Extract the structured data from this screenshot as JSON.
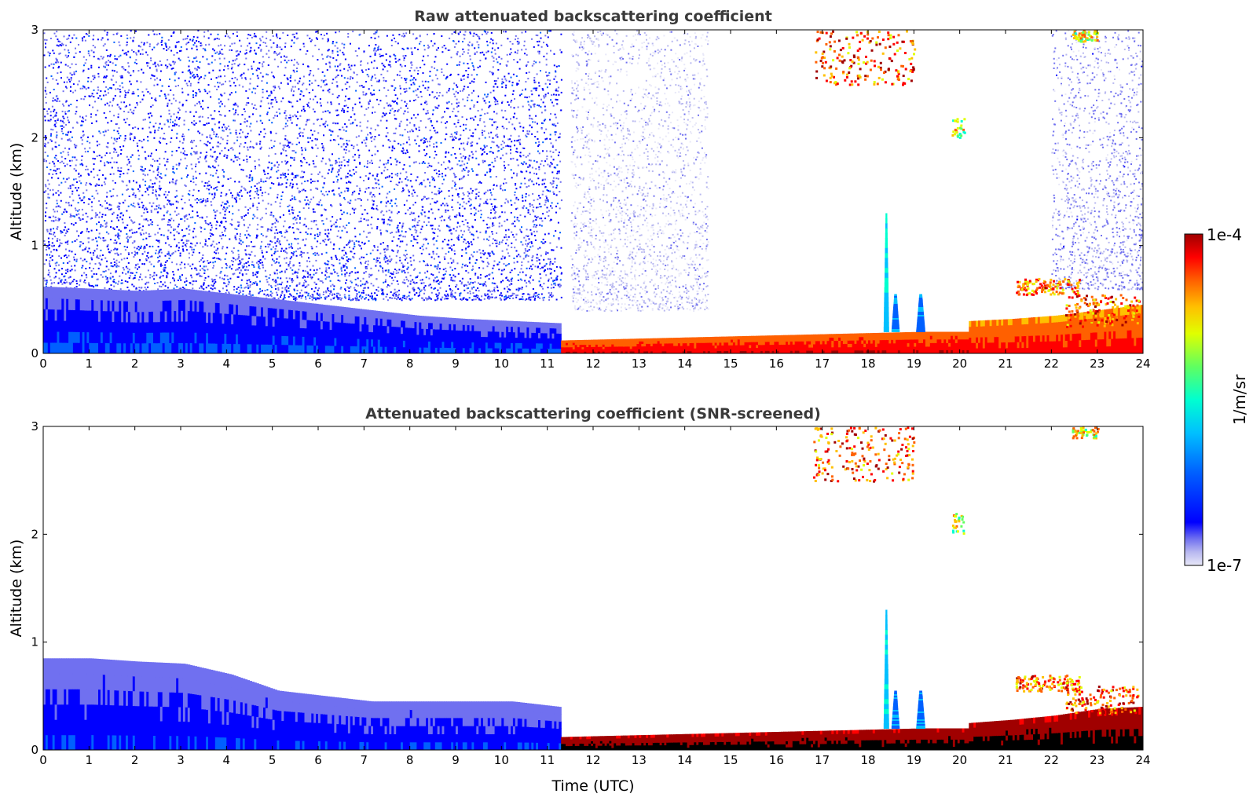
{
  "chart_data": [
    {
      "type": "heatmap",
      "title": "Raw attenuated backscattering coefficient",
      "xlabel": "",
      "ylabel": "Altitude (km)",
      "xlim": [
        0,
        24
      ],
      "ylim": [
        0,
        3
      ],
      "x_ticks": [
        "0",
        "1",
        "2",
        "3",
        "4",
        "5",
        "6",
        "7",
        "8",
        "9",
        "10",
        "11",
        "12",
        "13",
        "14",
        "15",
        "16",
        "17",
        "18",
        "19",
        "20",
        "21",
        "22",
        "23",
        "24"
      ],
      "y_ticks": [
        "0",
        "1",
        "2",
        "3"
      ],
      "features": [
        {
          "kind": "noise",
          "x": [
            0,
            11.3
          ],
          "y": [
            0.5,
            3.0
          ],
          "level": 0.22
        },
        {
          "kind": "noise",
          "x": [
            11.5,
            14.5
          ],
          "y": [
            0.4,
            3.0
          ],
          "level": 0.06
        },
        {
          "kind": "noise",
          "x": [
            22.0,
            24.0
          ],
          "y": [
            0.6,
            3.0
          ],
          "level": 0.12
        },
        {
          "kind": "layer",
          "x": [
            0,
            11.3
          ],
          "y_top": [
            0.62,
            0.6,
            0.58,
            0.6,
            0.55,
            0.5,
            0.45,
            0.4,
            0.35,
            0.32,
            0.3,
            0.28
          ],
          "y_bottom": 0.0,
          "level": 0.3
        },
        {
          "kind": "layer",
          "x": [
            11.3,
            20.2
          ],
          "y_top": [
            0.12,
            0.13,
            0.14,
            0.15,
            0.16,
            0.17,
            0.18,
            0.19,
            0.2,
            0.2
          ],
          "y_bottom": 0.0,
          "level": 0.95
        },
        {
          "kind": "layer",
          "x": [
            20.2,
            24
          ],
          "y_top": [
            0.3,
            0.32,
            0.35,
            0.4,
            0.45
          ],
          "y_bottom": 0.0,
          "level": 0.92
        },
        {
          "kind": "plume",
          "x_center": 18.4,
          "width": 0.12,
          "y": [
            0.2,
            1.3
          ],
          "level": 0.45
        },
        {
          "kind": "plume",
          "x_center": 18.6,
          "width": 0.18,
          "y": [
            0.2,
            0.55
          ],
          "level": 0.35
        },
        {
          "kind": "plume",
          "x_center": 19.15,
          "width": 0.2,
          "y": [
            0.2,
            0.55
          ],
          "level": 0.35
        },
        {
          "kind": "cloud",
          "x": [
            16.8,
            19.0
          ],
          "y": [
            2.5,
            3.0
          ],
          "level": 0.85
        },
        {
          "kind": "cloud",
          "x": [
            19.8,
            20.1
          ],
          "y": [
            2.0,
            2.2
          ],
          "level": 0.65
        },
        {
          "kind": "cloud",
          "x": [
            21.2,
            22.6
          ],
          "y": [
            0.55,
            0.7
          ],
          "level": 0.8
        },
        {
          "kind": "cloud",
          "x": [
            22.3,
            23.9
          ],
          "y": [
            0.25,
            0.55
          ],
          "level": 0.85
        },
        {
          "kind": "cloud",
          "x": [
            22.4,
            23.0
          ],
          "y": [
            2.9,
            3.0
          ],
          "level": 0.7
        }
      ]
    },
    {
      "type": "heatmap",
      "title": "Attenuated backscattering coefficient (SNR-screened)",
      "xlabel": "Time (UTC)",
      "ylabel": "Altitude (km)",
      "xlim": [
        0,
        24
      ],
      "ylim": [
        0,
        3
      ],
      "x_ticks": [
        "0",
        "1",
        "2",
        "3",
        "4",
        "5",
        "6",
        "7",
        "8",
        "9",
        "10",
        "11",
        "12",
        "13",
        "14",
        "15",
        "16",
        "17",
        "18",
        "19",
        "20",
        "21",
        "22",
        "23",
        "24"
      ],
      "y_ticks": [
        "0",
        "1",
        "2",
        "3"
      ],
      "features": [
        {
          "kind": "layer",
          "x": [
            0,
            11.3
          ],
          "y_top": [
            0.85,
            0.85,
            0.82,
            0.8,
            0.7,
            0.55,
            0.5,
            0.45,
            0.45,
            0.45,
            0.45,
            0.4
          ],
          "y_bottom": 0.0,
          "level": 0.28
        },
        {
          "kind": "layer",
          "x": [
            11.3,
            20.2
          ],
          "y_top": [
            0.12,
            0.13,
            0.14,
            0.15,
            0.16,
            0.17,
            0.18,
            0.19,
            0.2,
            0.2
          ],
          "y_bottom": 0.0,
          "level": 1.1
        },
        {
          "kind": "layer",
          "x": [
            20.2,
            24
          ],
          "y_top": [
            0.25,
            0.28,
            0.32,
            0.38,
            0.4
          ],
          "y_bottom": 0.0,
          "level": 1.1
        },
        {
          "kind": "plume",
          "x_center": 18.4,
          "width": 0.12,
          "y": [
            0.2,
            1.3
          ],
          "level": 0.45
        },
        {
          "kind": "plume",
          "x_center": 18.6,
          "width": 0.18,
          "y": [
            0.2,
            0.55
          ],
          "level": 0.35
        },
        {
          "kind": "plume",
          "x_center": 19.15,
          "width": 0.2,
          "y": [
            0.2,
            0.55
          ],
          "level": 0.35
        },
        {
          "kind": "cloud",
          "x": [
            16.8,
            19.0
          ],
          "y": [
            2.5,
            3.0
          ],
          "level": 0.85
        },
        {
          "kind": "cloud",
          "x": [
            19.8,
            20.1
          ],
          "y": [
            2.0,
            2.2
          ],
          "level": 0.65
        },
        {
          "kind": "cloud",
          "x": [
            21.2,
            22.6
          ],
          "y": [
            0.55,
            0.7
          ],
          "level": 0.8
        },
        {
          "kind": "cloud",
          "x": [
            22.3,
            23.9
          ],
          "y": [
            0.35,
            0.6
          ],
          "level": 0.85
        },
        {
          "kind": "cloud",
          "x": [
            22.4,
            23.0
          ],
          "y": [
            2.9,
            3.0
          ],
          "level": 0.7
        }
      ]
    }
  ],
  "colorbar": {
    "max_label": "1e-4",
    "min_label": "1e-7",
    "unit_label": "1/m/sr",
    "scale": "log"
  },
  "colors": {
    "colormap": [
      "#e8e8f8",
      "#b8b8f0",
      "#7070f0",
      "#0000ff",
      "#0060ff",
      "#00c0ff",
      "#00ffd0",
      "#60ff60",
      "#e0ff00",
      "#ffc000",
      "#ff6000",
      "#ff0000",
      "#a00000"
    ],
    "axis": "#000000",
    "title": "#3a3a3a"
  }
}
